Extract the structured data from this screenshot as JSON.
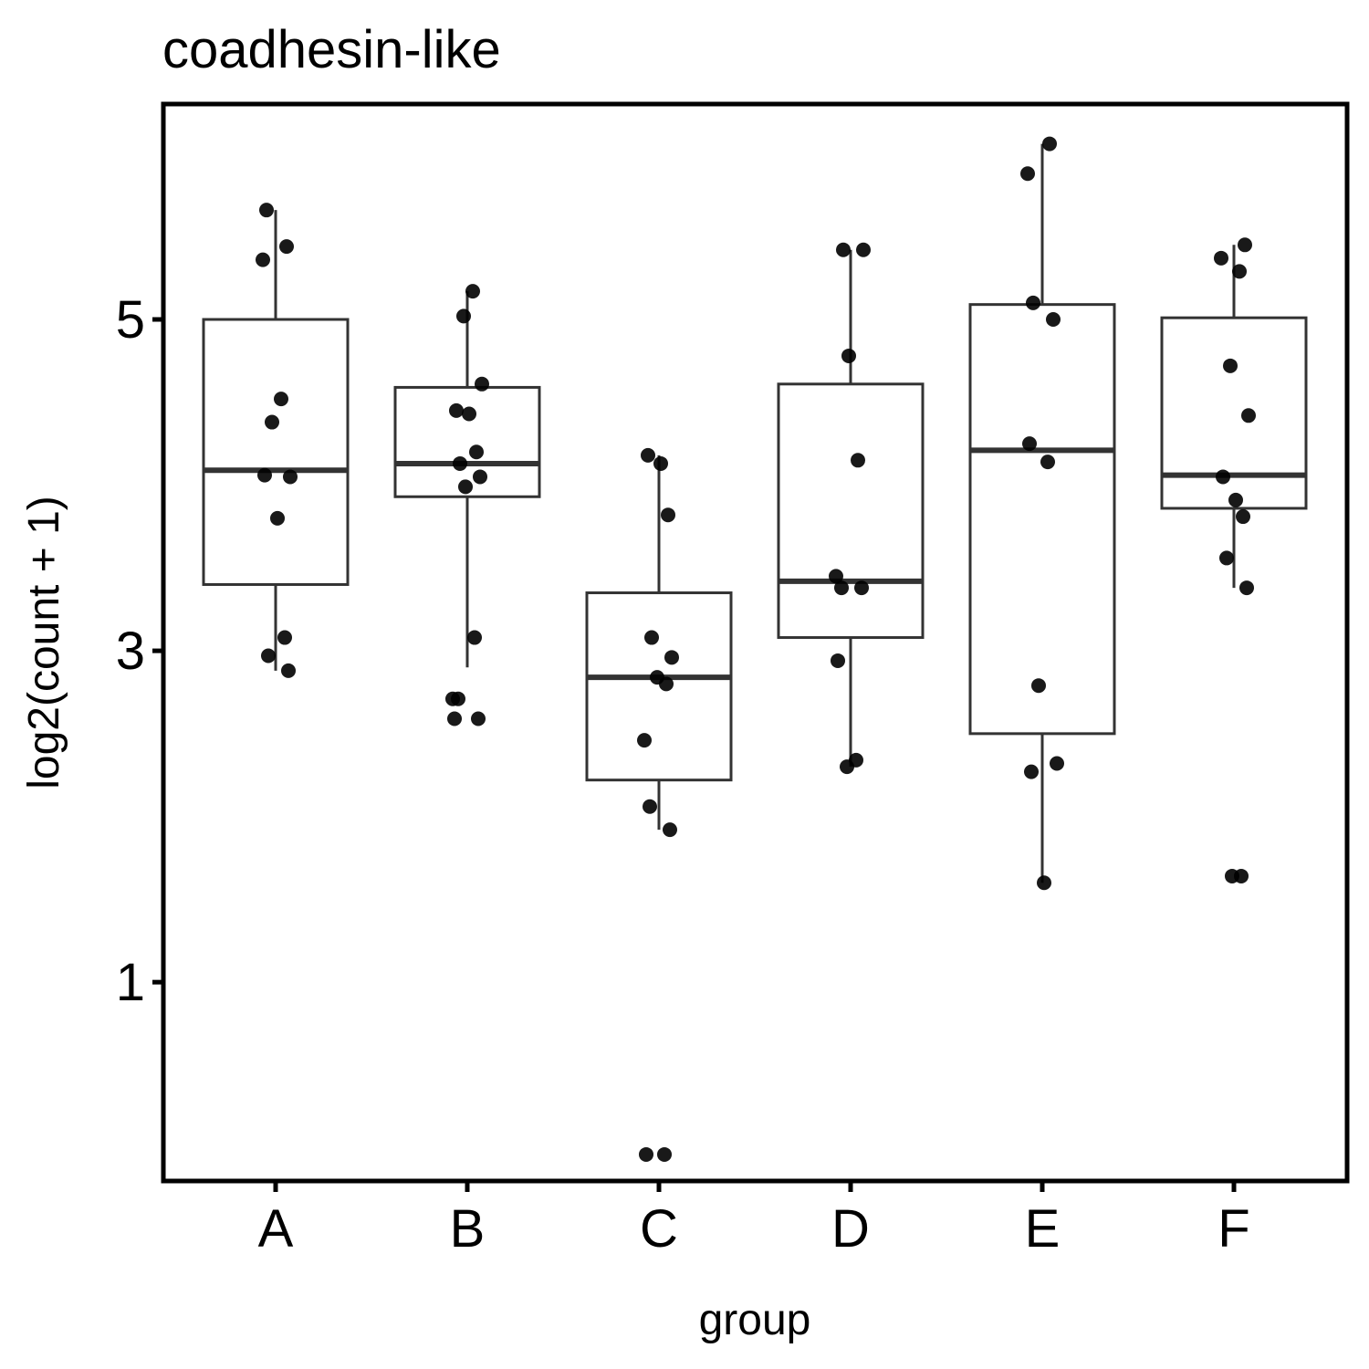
{
  "chart_data": {
    "type": "box",
    "title": "coadhesin-like",
    "xlabel": "group",
    "ylabel": "log2(count + 1)",
    "ylim": [
      -0.2,
      6.3
    ],
    "y_ticks": [
      1,
      3,
      5
    ],
    "grid": false,
    "categories": [
      "A",
      "B",
      "C",
      "D",
      "E",
      "F"
    ],
    "boxes": [
      {
        "group": "A",
        "whisker_low": 2.88,
        "q1": 3.4,
        "median": 4.09,
        "q3": 5.0,
        "whisker_high": 5.66
      },
      {
        "group": "B",
        "whisker_low": 2.9,
        "q1": 3.93,
        "median": 4.13,
        "q3": 4.59,
        "whisker_high": 5.17
      },
      {
        "group": "C",
        "whisker_low": 1.92,
        "q1": 2.22,
        "median": 2.84,
        "q3": 3.35,
        "whisker_high": 4.18
      },
      {
        "group": "D",
        "whisker_low": 2.3,
        "q1": 3.08,
        "median": 3.42,
        "q3": 4.61,
        "whisker_high": 5.42
      },
      {
        "group": "E",
        "whisker_low": 1.6,
        "q1": 2.5,
        "median": 4.21,
        "q3": 5.09,
        "whisker_high": 6.06
      },
      {
        "group": "F",
        "whisker_low": 3.38,
        "q1": 3.86,
        "median": 4.06,
        "q3": 5.01,
        "whisker_high": 5.45
      }
    ],
    "points": [
      {
        "group": "A",
        "values": [
          5.66,
          5.44,
          5.36,
          4.52,
          4.38,
          4.05,
          4.06,
          3.8,
          3.08,
          2.97,
          2.88
        ]
      },
      {
        "group": "B",
        "values": [
          5.17,
          5.02,
          4.61,
          4.45,
          4.43,
          4.2,
          4.13,
          4.05,
          3.99,
          3.08,
          2.71,
          2.71,
          2.59,
          2.59
        ]
      },
      {
        "group": "C",
        "values": [
          4.18,
          4.13,
          3.82,
          3.08,
          2.96,
          2.84,
          2.8,
          2.46,
          2.06,
          1.92,
          -0.04,
          -0.04
        ]
      },
      {
        "group": "D",
        "values": [
          5.42,
          5.42,
          4.78,
          4.15,
          3.45,
          3.38,
          3.38,
          2.94,
          2.34,
          2.3
        ]
      },
      {
        "group": "E",
        "values": [
          6.06,
          5.88,
          5.1,
          5.0,
          4.25,
          4.14,
          2.79,
          2.32,
          2.27,
          1.6
        ]
      },
      {
        "group": "F",
        "values": [
          5.45,
          5.37,
          5.29,
          4.72,
          4.42,
          4.05,
          3.91,
          3.81,
          3.56,
          3.38,
          1.64,
          1.64
        ]
      }
    ]
  }
}
